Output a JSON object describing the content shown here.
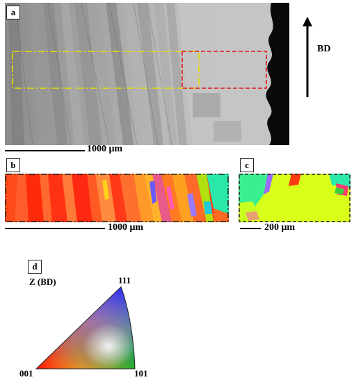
{
  "panels": {
    "a": {
      "label": "a",
      "scale_label": "1000 μm",
      "direction_label": "BD"
    },
    "b": {
      "label": "b",
      "scale_label": "1000 μm"
    },
    "c": {
      "label": "c",
      "scale_label": "200 μm"
    },
    "d": {
      "label": "d",
      "axis_label": "Z (BD)",
      "vertex_top": "111",
      "vertex_left": "001",
      "vertex_right": "101"
    }
  },
  "colors": {
    "roi_b_outline": "#e8e000",
    "roi_c_outline": "#e41515",
    "sem_background": "#b8b8b8",
    "ebsd_primary": "#ff2a0a",
    "ebsd_secondary": "#d7ff1a"
  }
}
